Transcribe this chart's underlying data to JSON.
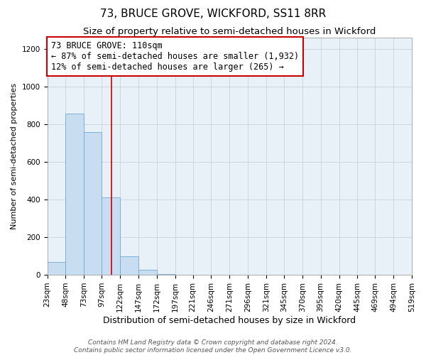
{
  "title": "73, BRUCE GROVE, WICKFORD, SS11 8RR",
  "subtitle": "Size of property relative to semi-detached houses in Wickford",
  "xlabel": "Distribution of semi-detached houses by size in Wickford",
  "ylabel": "Number of semi-detached properties",
  "bar_color": "#c9ddf0",
  "bar_edge_color": "#6fa8d4",
  "background_color": "#ffffff",
  "plot_bg_color": "#e8f0f8",
  "grid_color": "#c8d0dc",
  "annotation_box_color": "#cc0000",
  "vline_color": "#cc0000",
  "vline_x": 110,
  "bin_edges": [
    23,
    48,
    73,
    97,
    122,
    147,
    172,
    197,
    221,
    246,
    271,
    296,
    321,
    345,
    370,
    395,
    420,
    445,
    469,
    494,
    519
  ],
  "bin_labels": [
    "23sqm",
    "48sqm",
    "73sqm",
    "97sqm",
    "122sqm",
    "147sqm",
    "172sqm",
    "197sqm",
    "221sqm",
    "246sqm",
    "271sqm",
    "296sqm",
    "321sqm",
    "345sqm",
    "370sqm",
    "395sqm",
    "420sqm",
    "445sqm",
    "469sqm",
    "494sqm",
    "519sqm"
  ],
  "counts": [
    70,
    855,
    760,
    410,
    100,
    28,
    5,
    0,
    0,
    0,
    0,
    0,
    0,
    0,
    0,
    0,
    0,
    0,
    0,
    0
  ],
  "ylim": [
    0,
    1260
  ],
  "yticks": [
    0,
    200,
    400,
    600,
    800,
    1000,
    1200
  ],
  "annotation_title": "73 BRUCE GROVE: 110sqm",
  "annotation_line1": "← 87% of semi-detached houses are smaller (1,932)",
  "annotation_line2": "12% of semi-detached houses are larger (265) →",
  "footer_line1": "Contains HM Land Registry data © Crown copyright and database right 2024.",
  "footer_line2": "Contains public sector information licensed under the Open Government Licence v3.0.",
  "title_fontsize": 11,
  "subtitle_fontsize": 9.5,
  "xlabel_fontsize": 9,
  "ylabel_fontsize": 8,
  "tick_fontsize": 7.5,
  "annotation_fontsize": 8.5,
  "footer_fontsize": 6.5
}
